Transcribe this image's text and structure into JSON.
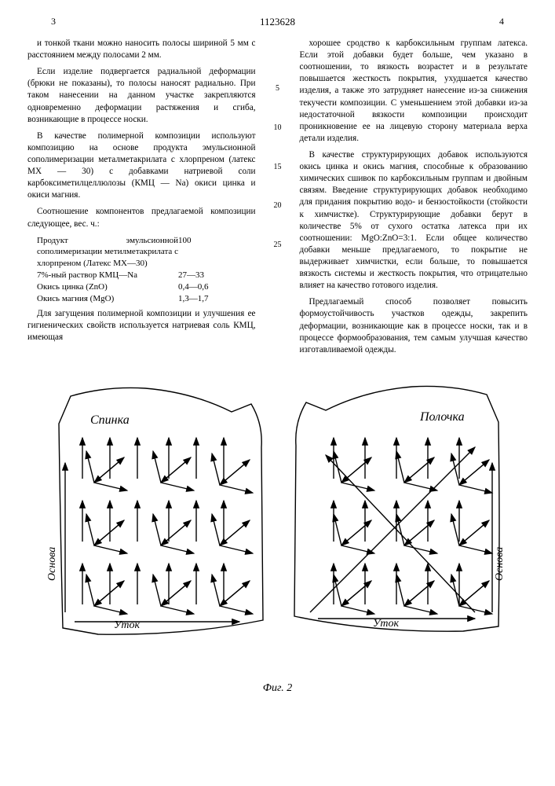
{
  "header": {
    "left_page": "3",
    "patent_number": "1123628",
    "right_page": "4"
  },
  "left_col": {
    "p1": "и тонкой ткани можно наносить полосы шириной 5 мм с расстоянием между полосами 2 мм.",
    "p2": "Если изделие подвергается радиальной деформации (брюки не показаны), то полосы наносят радиально. При таком нанесении на данном участке закрепляются одновременно деформации растяжения и сгиба, возникающие в процессе носки.",
    "p3": "В качестве полимерной композиции используют композицию на основе продукта эмульсионной сополимеризации металметакрилата с хлорпреном (латекс МХ — 30) с добавками натриевой соли карбоксиметилцеллюлозы (КМЦ — Na) окиси цинка и окиси магния.",
    "p4": "Соотношение компонентов предлагаемой композиции следующее, вес. ч.:",
    "table": {
      "r1_label": "Продукт эмульсионной сополимеризации метилметакрилата с хлорпреном (Латекс МХ—30)",
      "r1_value": "100",
      "r2_label": "7%-ный раствор КМЦ—Na",
      "r2_value": "27—33",
      "r3_label": "Окись цинка (ZnO)",
      "r3_value": "0,4—0,6",
      "r4_label": "Окись магния (MgO)",
      "r4_value": "1,3—1,7"
    },
    "p5": "Для загущения полимерной композиции и улучшения ее гигиенических свойств используется натриевая соль КМЦ, имеющая"
  },
  "line_numbers": {
    "n5": "5",
    "n10": "10",
    "n15": "15",
    "n20": "20",
    "n25": "25"
  },
  "right_col": {
    "p1": "хорошее сродство к карбоксильным группам латекса. Если этой добавки будет больше, чем указано в соотношении, то вязкость возрастет и в результате повышается жесткость покрытия, ухудшается качество изделия, а также это затрудняет нанесение из-за снижения текучести композиции. С уменьшением этой добавки из-за недостаточной вязкости композиции происходит проникновение ее на лицевую сторону материала верха детали изделия.",
    "p2": "В качестве структурирующих добавок используются окись цинка и окись магния, способные к образованию химических сшивок по карбоксильным группам и двойным связям. Введение структурирующих добавок необходимо для придания покрытию водо- и бензостойкости (стойкости к химчистке). Структурирующие добавки берут в количестве 5% от сухого остатка латекса при их соотношении: MgO:ZnO=3:1. Если общее количество добавки меньше предлагаемого, то покрытие не выдерживает химчистки, если больше, то повышается вязкость системы и жесткость покрытия, что отрицательно влияет на качество готового изделия.",
    "p3": "Предлагаемый способ позволяет повысить формоустойчивость участков одежды, закрепить деформации, возникающие как в процессе носки, так и в процессе формообразования, тем самым улучшая качество изготавливаемой одежды."
  },
  "figure": {
    "caption": "Фиг. 2",
    "labels": {
      "spinka": "Спинка",
      "polochka": "Полочка",
      "osnova": "Основа",
      "utok": "Уток"
    },
    "stroke_color": "#000000",
    "stroke_width": 1.4,
    "font_size": 16,
    "font_size_small": 14
  }
}
